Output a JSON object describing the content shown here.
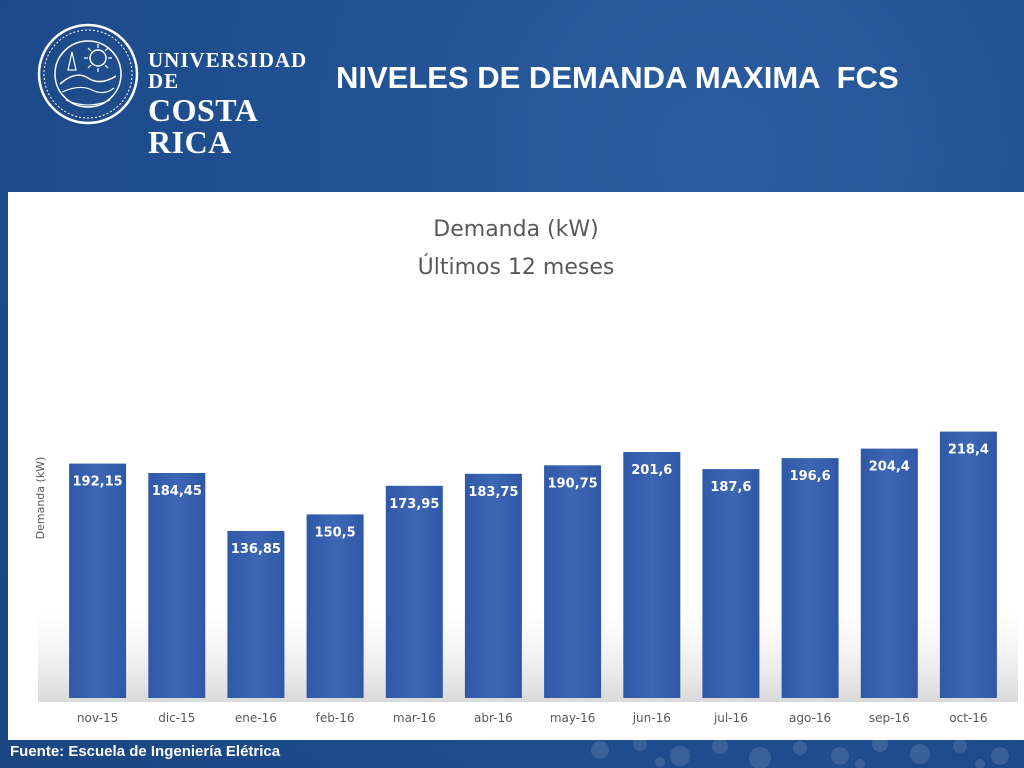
{
  "header": {
    "logo_line1": "UNIVERSIDAD DE",
    "logo_line2": "COSTA RICA",
    "title": "NIVELES DE DEMANDA MAXIMA  FCS"
  },
  "footer": {
    "source": "Fuente: Escuela de Ingeniería Elétrica"
  },
  "colors": {
    "background": "#1f4e8f",
    "bar": "#3a63b0",
    "bar_dark": "#2b4f98",
    "panel": "#ffffff"
  },
  "chart_data": {
    "type": "bar",
    "title": "Demanda (kW)",
    "subtitle": "Últimos 12 meses",
    "ylabel": "Demanda (kW)",
    "xlabel": "",
    "categories": [
      "nov-15",
      "dic-15",
      "ene-16",
      "feb-16",
      "mar-16",
      "abr-16",
      "may-16",
      "jun-16",
      "jul-16",
      "ago-16",
      "sep-16",
      "oct-16"
    ],
    "values": [
      192.15,
      184.45,
      136.85,
      150.5,
      173.95,
      183.75,
      190.75,
      201.6,
      187.6,
      196.6,
      204.4,
      218.4
    ],
    "value_labels": [
      "192,15",
      "184,45",
      "136,85",
      "150,5",
      "173,95",
      "183,75",
      "190,75",
      "201,6",
      "187,6",
      "196,6",
      "204,4",
      "218,4"
    ],
    "ylim": [
      0,
      250
    ],
    "grid": false,
    "legend": "none",
    "data_labels": "inside-top"
  }
}
